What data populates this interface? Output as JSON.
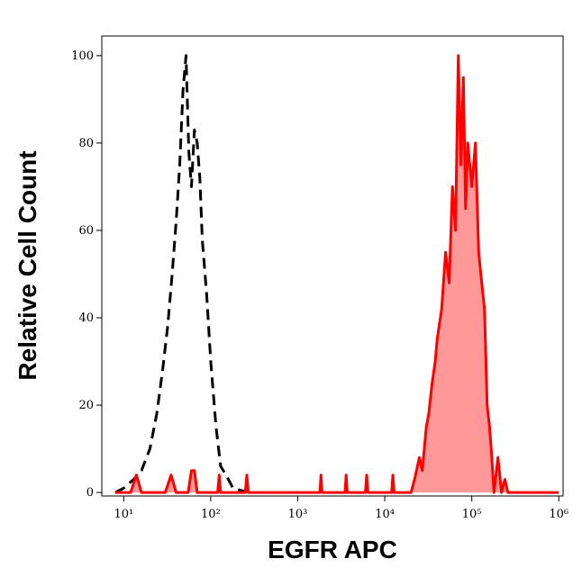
{
  "chart_data": {
    "type": "histogram-overlay",
    "x_label": "EGFR APC",
    "y_label": "Relative Cell Count",
    "log_x": true,
    "xlim": [
      5.6,
      1120000
    ],
    "ylim": [
      -0.8,
      104.5
    ],
    "xticks": [
      {
        "value": 10,
        "label": "10¹"
      },
      {
        "value": 100,
        "label": "10²"
      },
      {
        "value": 1000,
        "label": "10³"
      },
      {
        "value": 10000,
        "label": "10⁴"
      },
      {
        "value": 100000,
        "label": "10⁵"
      },
      {
        "value": 1000000,
        "label": "10⁶"
      }
    ],
    "yticks": [
      0,
      20,
      40,
      60,
      80,
      100
    ],
    "series": [
      {
        "color": "#000000",
        "dashed": true,
        "fill": null,
        "x": [
          8,
          10,
          13,
          16,
          20,
          24,
          28,
          32,
          36,
          40,
          44,
          48,
          52,
          56,
          60,
          65,
          70,
          75,
          80,
          90,
          100,
          115,
          130,
          150,
          180,
          220,
          280
        ],
        "values": [
          0,
          1,
          3,
          5,
          10,
          18,
          28,
          38,
          50,
          62,
          75,
          92,
          100,
          78,
          70,
          83,
          80,
          72,
          58,
          45,
          30,
          15,
          6,
          4,
          1,
          0.5,
          0
        ]
      },
      {
        "color": "#ff0000",
        "dashed": false,
        "fill": "#ff9999",
        "x": [
          8,
          12,
          14,
          16,
          30,
          35,
          40,
          55,
          60,
          65,
          70,
          120,
          125,
          130,
          200,
          250,
          260,
          270,
          1000,
          1800,
          1850,
          1900,
          3500,
          3600,
          3700,
          6000,
          6200,
          6400,
          12000,
          12400,
          12800,
          20000,
          22000,
          25000,
          27000,
          30000,
          32000,
          35000,
          38000,
          40000,
          45000,
          50000,
          55000,
          60000,
          65000,
          70000,
          75000,
          80000,
          85000,
          90000,
          100000,
          110000,
          120000,
          130000,
          140000,
          150000,
          160000,
          170000,
          180000,
          200000,
          220000,
          240000,
          260000,
          300000,
          1000000
        ],
        "values": [
          0,
          0,
          4,
          0,
          0,
          4,
          0,
          0,
          5,
          5,
          0,
          0,
          4,
          0,
          0,
          0,
          4,
          0,
          0,
          0,
          4,
          0,
          0,
          4,
          0,
          0,
          4,
          0,
          0,
          4,
          0,
          0,
          3,
          8,
          5,
          15,
          18,
          25,
          30,
          35,
          42,
          55,
          48,
          70,
          60,
          100,
          75,
          95,
          65,
          80,
          70,
          80,
          55,
          48,
          42,
          20,
          15,
          8,
          0,
          8,
          0,
          3,
          0,
          0,
          0
        ]
      }
    ]
  }
}
